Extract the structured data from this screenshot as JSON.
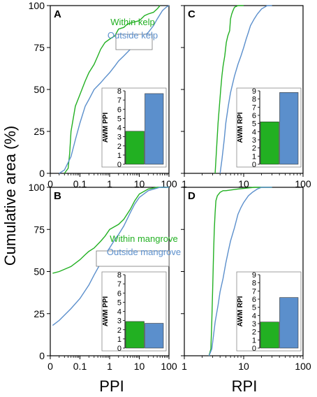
{
  "figure": {
    "ylabel": "Cumulative area (%)",
    "xlabel_left": "PPI",
    "xlabel_right": "RPI"
  },
  "colors": {
    "within": "#22b022",
    "outside": "#5b8fcc"
  },
  "chart_data": [
    {
      "panel": "A",
      "type": "line",
      "xscale": "log-with-zero",
      "xlim": [
        0,
        100
      ],
      "ylim": [
        0,
        100
      ],
      "xticks": [
        "0",
        "0.1",
        "1",
        "10",
        "100"
      ],
      "yticks": [
        "0",
        "25",
        "50",
        "75",
        "100"
      ],
      "legend": [
        "Within kelp",
        "Outside kelp"
      ],
      "legend_position": "top-right",
      "series": [
        {
          "name": "Within kelp",
          "color": "green",
          "x": [
            0.03,
            0.04,
            0.045,
            0.05,
            0.07,
            0.1,
            0.15,
            0.2,
            0.3,
            0.4,
            0.5,
            0.7,
            1,
            1.5,
            2,
            3,
            4,
            6,
            10,
            15,
            20,
            30,
            40,
            50
          ],
          "y": [
            0,
            3,
            12,
            25,
            40,
            47,
            55,
            60,
            65,
            70,
            74,
            78,
            80,
            82,
            86,
            87,
            89,
            90,
            91,
            94,
            95,
            96,
            98,
            100
          ]
        },
        {
          "name": "Outside kelp",
          "color": "blue",
          "x": [
            0.02,
            0.03,
            0.05,
            0.07,
            0.1,
            0.15,
            0.2,
            0.3,
            0.5,
            0.7,
            1,
            1.5,
            2,
            3,
            5,
            7,
            10,
            15,
            20,
            30,
            40,
            60,
            80,
            100
          ],
          "y": [
            0,
            2,
            10,
            20,
            30,
            40,
            44,
            50,
            54,
            57,
            60,
            64,
            67,
            70,
            74,
            76,
            78,
            82,
            84,
            88,
            92,
            97,
            99,
            100
          ]
        }
      ],
      "inset": {
        "ylabel": "AWM PPI",
        "yticks": [
          "0",
          "1",
          "2",
          "3",
          "4",
          "5",
          "6",
          "7",
          "8"
        ],
        "ymax": 8,
        "values": [
          3.6,
          7.7
        ]
      }
    },
    {
      "panel": "B",
      "type": "line",
      "xscale": "log-with-zero",
      "xlim": [
        0,
        100
      ],
      "ylim": [
        0,
        100
      ],
      "xticks": [
        "0",
        "0.1",
        "1",
        "10",
        "100"
      ],
      "yticks": [
        "0",
        "25",
        "50",
        "75",
        "100"
      ],
      "legend": [
        "Within mangrove",
        "Outside mangrove"
      ],
      "legend_position": "top-right",
      "series": [
        {
          "name": "Within mangrove",
          "color": "green",
          "x": [
            0.012,
            0.02,
            0.05,
            0.1,
            0.15,
            0.2,
            0.3,
            0.5,
            0.7,
            1,
            2,
            3,
            5,
            7,
            10,
            20,
            40,
            100
          ],
          "y": [
            49,
            50,
            53,
            57,
            60,
            62,
            64,
            68,
            71,
            75,
            78,
            81,
            87,
            92,
            96,
            99,
            100,
            100
          ]
        },
        {
          "name": "Outside mangrove",
          "color": "blue",
          "x": [
            0.012,
            0.02,
            0.05,
            0.1,
            0.2,
            0.3,
            0.5,
            0.7,
            1,
            1.5,
            2,
            3,
            5,
            7,
            10,
            20,
            50,
            100
          ],
          "y": [
            18,
            21,
            28,
            34,
            42,
            48,
            55,
            60,
            64,
            69,
            72,
            77,
            85,
            90,
            94,
            98,
            100,
            100
          ]
        }
      ],
      "inset": {
        "ylabel": "AWM PPI",
        "yticks": [
          "0",
          "1",
          "2",
          "3",
          "4",
          "5",
          "6",
          "7",
          "8"
        ],
        "ymax": 8,
        "values": [
          2.9,
          2.7
        ]
      }
    },
    {
      "panel": "C",
      "type": "line",
      "xscale": "log",
      "xlim": [
        1,
        100
      ],
      "ylim": [
        0,
        100
      ],
      "xticks": [
        "1",
        "10",
        "100"
      ],
      "yticks": [],
      "series": [
        {
          "name": "Within kelp",
          "color": "green",
          "x": [
            3.3,
            3.5,
            3.7,
            3.9,
            4.1,
            4.3,
            4.5,
            4.8,
            5.1,
            5.4,
            5.8,
            6.0,
            6.3,
            6.6,
            7,
            8,
            10
          ],
          "y": [
            0,
            15,
            30,
            40,
            50,
            58,
            64,
            70,
            78,
            82,
            85,
            92,
            95,
            97,
            99,
            100,
            100
          ]
        },
        {
          "name": "Outside kelp",
          "color": "blue",
          "x": [
            4.0,
            4.3,
            4.7,
            5.0,
            5.5,
            6,
            7,
            8,
            9,
            10,
            11,
            12,
            13,
            15,
            17,
            20,
            25,
            30
          ],
          "y": [
            0,
            8,
            20,
            30,
            40,
            48,
            58,
            65,
            70,
            75,
            80,
            84,
            88,
            92,
            95,
            98,
            100,
            100
          ]
        }
      ],
      "inset": {
        "ylabel": "AWM RPI",
        "yticks": [
          "0",
          "1",
          "2",
          "3",
          "4",
          "5",
          "6",
          "7",
          "8",
          "9"
        ],
        "ymax": 9,
        "values": [
          5.2,
          8.8
        ]
      }
    },
    {
      "panel": "D",
      "type": "line",
      "xscale": "log",
      "xlim": [
        1,
        100
      ],
      "ylim": [
        0,
        100
      ],
      "xticks": [
        "1",
        "10",
        "100"
      ],
      "yticks": [],
      "series": [
        {
          "name": "Within mangrove",
          "color": "green",
          "x": [
            2.6,
            2.8,
            2.9,
            3.0,
            3.1,
            3.2,
            3.3,
            3.4,
            3.6,
            3.8,
            4.0,
            4.5,
            5,
            8,
            15,
            30
          ],
          "y": [
            0,
            4,
            20,
            40,
            60,
            75,
            85,
            92,
            95,
            96,
            97,
            98,
            98,
            99,
            100,
            100
          ]
        },
        {
          "name": "Outside mangrove",
          "color": "blue",
          "x": [
            2.6,
            2.9,
            3.0,
            3.3,
            3.7,
            4.0,
            4.5,
            5,
            5.5,
            6,
            7,
            8,
            9,
            10,
            12,
            14,
            17,
            20,
            30
          ],
          "y": [
            0,
            4,
            8,
            20,
            30,
            38,
            46,
            55,
            62,
            68,
            76,
            84,
            88,
            91,
            95,
            97,
            99,
            100,
            100
          ]
        }
      ],
      "inset": {
        "ylabel": "AWM RPI",
        "yticks": [
          "0",
          "1",
          "2",
          "3",
          "4",
          "5",
          "6",
          "7",
          "8",
          "9"
        ],
        "ymax": 9,
        "values": [
          3.2,
          6.2
        ]
      }
    }
  ]
}
